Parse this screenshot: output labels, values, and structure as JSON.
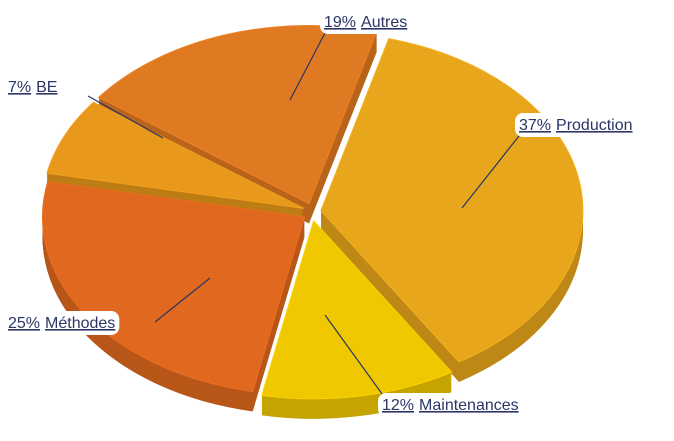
{
  "chart_data": {
    "type": "pie",
    "categories": [
      "Production",
      "Maintenances",
      "Méthodes",
      "BE",
      "Autres"
    ],
    "values": [
      37,
      12,
      25,
      7,
      19
    ],
    "value_labels": [
      "37%",
      "12%",
      "25%",
      "7%",
      "19%"
    ],
    "colors": [
      "#e8a61c",
      "#f0c800",
      "#e0691f",
      "#e8981a",
      "#e07a22"
    ]
  }
}
